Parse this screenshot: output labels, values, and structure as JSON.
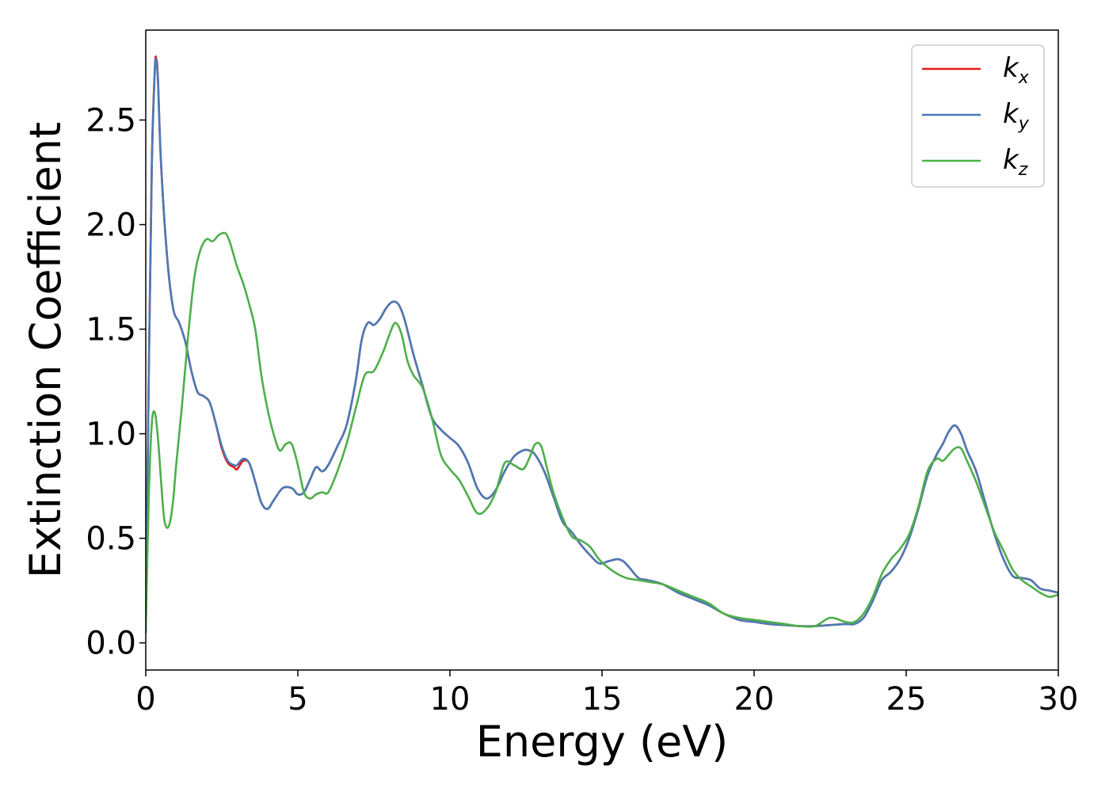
{
  "chart_data": {
    "type": "line",
    "title": "",
    "xlabel": "Energy (eV)",
    "ylabel": "Extinction Coefficient",
    "xlim": [
      0,
      30
    ],
    "ylim": [
      -0.13,
      2.93
    ],
    "xticks": [
      0,
      5,
      10,
      15,
      20,
      25,
      30
    ],
    "xtick_labels": [
      "0",
      "5",
      "10",
      "15",
      "20",
      "25",
      "30"
    ],
    "yticks": [
      0.0,
      0.5,
      1.0,
      1.5,
      2.0,
      2.5
    ],
    "ytick_labels": [
      "0.0",
      "0.5",
      "1.0",
      "1.5",
      "2.0",
      "2.5"
    ],
    "grid": false,
    "legend_position": "top-right",
    "series": [
      {
        "name": "kx",
        "legend_base": "k",
        "legend_sub": "x",
        "color": "#e41a1c",
        "x": [
          0,
          0.1,
          0.2,
          0.3,
          0.35,
          0.4,
          0.5,
          0.7,
          0.9,
          1.1,
          1.3,
          1.5,
          1.7,
          1.9,
          2.1,
          2.3,
          2.5,
          2.7,
          2.9,
          3.0,
          3.2,
          3.4,
          3.6,
          3.8,
          4.0,
          4.2,
          4.5,
          4.8,
          5.0,
          5.2,
          5.4,
          5.6,
          5.8,
          6.0,
          6.3,
          6.6,
          6.9,
          7.1,
          7.3,
          7.5,
          7.7,
          7.9,
          8.1,
          8.3,
          8.5,
          8.8,
          9.1,
          9.4,
          9.7,
          10.0,
          10.3,
          10.6,
          10.9,
          11.2,
          11.5,
          11.8,
          12.1,
          12.4,
          12.6,
          12.8,
          13.1,
          13.4,
          13.7,
          14.0,
          14.3,
          14.6,
          14.9,
          15.2,
          15.5,
          15.7,
          15.9,
          16.2,
          16.5,
          17.0,
          17.5,
          18.0,
          18.5,
          19.0,
          19.5,
          20.0,
          20.5,
          21.0,
          21.5,
          22.0,
          22.5,
          23.0,
          23.3,
          23.6,
          23.9,
          24.2,
          24.5,
          24.8,
          25.1,
          25.4,
          25.7,
          26.0,
          26.2,
          26.4,
          26.6,
          26.8,
          27.0,
          27.3,
          27.6,
          27.9,
          28.2,
          28.5,
          28.8,
          29.1,
          29.4,
          29.7,
          30.0
        ],
        "y": [
          0.05,
          1.3,
          2.3,
          2.75,
          2.79,
          2.7,
          2.3,
          1.85,
          1.6,
          1.53,
          1.44,
          1.3,
          1.2,
          1.18,
          1.15,
          1.05,
          0.93,
          0.86,
          0.84,
          0.83,
          0.87,
          0.86,
          0.77,
          0.67,
          0.64,
          0.68,
          0.74,
          0.74,
          0.71,
          0.72,
          0.78,
          0.84,
          0.82,
          0.85,
          0.94,
          1.04,
          1.25,
          1.45,
          1.53,
          1.52,
          1.55,
          1.6,
          1.63,
          1.62,
          1.55,
          1.38,
          1.23,
          1.08,
          1.02,
          0.98,
          0.94,
          0.86,
          0.74,
          0.69,
          0.73,
          0.82,
          0.89,
          0.92,
          0.92,
          0.9,
          0.82,
          0.7,
          0.58,
          0.53,
          0.47,
          0.42,
          0.38,
          0.39,
          0.4,
          0.39,
          0.36,
          0.31,
          0.3,
          0.28,
          0.24,
          0.21,
          0.18,
          0.14,
          0.11,
          0.1,
          0.09,
          0.085,
          0.08,
          0.08,
          0.085,
          0.09,
          0.09,
          0.12,
          0.2,
          0.3,
          0.34,
          0.4,
          0.5,
          0.64,
          0.8,
          0.9,
          0.95,
          1.01,
          1.04,
          1.0,
          0.92,
          0.82,
          0.67,
          0.52,
          0.4,
          0.32,
          0.31,
          0.3,
          0.26,
          0.25,
          0.24
        ]
      },
      {
        "name": "ky",
        "legend_base": "k",
        "legend_sub": "y",
        "color": "#4a7ab5",
        "x": [
          0,
          0.1,
          0.2,
          0.3,
          0.35,
          0.4,
          0.5,
          0.7,
          0.9,
          1.1,
          1.3,
          1.5,
          1.7,
          1.9,
          2.1,
          2.3,
          2.5,
          2.7,
          2.9,
          3.0,
          3.2,
          3.4,
          3.6,
          3.8,
          4.0,
          4.2,
          4.5,
          4.8,
          5.0,
          5.2,
          5.4,
          5.6,
          5.8,
          6.0,
          6.3,
          6.6,
          6.9,
          7.1,
          7.3,
          7.5,
          7.7,
          7.9,
          8.1,
          8.3,
          8.5,
          8.8,
          9.1,
          9.4,
          9.7,
          10.0,
          10.3,
          10.6,
          10.9,
          11.2,
          11.5,
          11.8,
          12.1,
          12.4,
          12.6,
          12.8,
          13.1,
          13.4,
          13.7,
          14.0,
          14.3,
          14.6,
          14.9,
          15.2,
          15.5,
          15.7,
          15.9,
          16.2,
          16.5,
          17.0,
          17.5,
          18.0,
          18.5,
          19.0,
          19.5,
          20.0,
          20.5,
          21.0,
          21.5,
          22.0,
          22.5,
          23.0,
          23.3,
          23.6,
          23.9,
          24.2,
          24.5,
          24.8,
          25.1,
          25.4,
          25.7,
          26.0,
          26.2,
          26.4,
          26.6,
          26.8,
          27.0,
          27.3,
          27.6,
          27.9,
          28.2,
          28.5,
          28.8,
          29.1,
          29.4,
          29.7,
          30.0
        ],
        "y": [
          0.05,
          1.28,
          2.28,
          2.74,
          2.78,
          2.69,
          2.3,
          1.85,
          1.6,
          1.53,
          1.44,
          1.3,
          1.2,
          1.18,
          1.15,
          1.05,
          0.94,
          0.87,
          0.85,
          0.85,
          0.88,
          0.86,
          0.77,
          0.67,
          0.64,
          0.68,
          0.74,
          0.74,
          0.71,
          0.72,
          0.78,
          0.84,
          0.82,
          0.85,
          0.94,
          1.04,
          1.25,
          1.45,
          1.53,
          1.52,
          1.55,
          1.6,
          1.63,
          1.62,
          1.55,
          1.38,
          1.23,
          1.08,
          1.02,
          0.98,
          0.94,
          0.86,
          0.74,
          0.69,
          0.73,
          0.82,
          0.89,
          0.92,
          0.92,
          0.9,
          0.82,
          0.7,
          0.58,
          0.53,
          0.47,
          0.42,
          0.38,
          0.39,
          0.4,
          0.39,
          0.36,
          0.31,
          0.3,
          0.28,
          0.24,
          0.21,
          0.18,
          0.14,
          0.11,
          0.1,
          0.09,
          0.085,
          0.08,
          0.08,
          0.085,
          0.09,
          0.09,
          0.12,
          0.2,
          0.3,
          0.34,
          0.4,
          0.5,
          0.64,
          0.8,
          0.9,
          0.95,
          1.01,
          1.04,
          1.0,
          0.92,
          0.82,
          0.67,
          0.52,
          0.4,
          0.32,
          0.31,
          0.3,
          0.26,
          0.25,
          0.24
        ]
      },
      {
        "name": "kz",
        "legend_base": "k",
        "legend_sub": "z",
        "color": "#4daf4a",
        "x": [
          0,
          0.1,
          0.2,
          0.3,
          0.4,
          0.5,
          0.6,
          0.7,
          0.8,
          0.9,
          1.0,
          1.2,
          1.4,
          1.6,
          1.8,
          2.0,
          2.2,
          2.4,
          2.6,
          2.7,
          2.8,
          3.0,
          3.2,
          3.4,
          3.6,
          3.8,
          4.0,
          4.2,
          4.4,
          4.6,
          4.8,
          5.0,
          5.2,
          5.4,
          5.6,
          5.8,
          6.0,
          6.3,
          6.6,
          6.9,
          7.2,
          7.5,
          7.8,
          8.0,
          8.2,
          8.4,
          8.6,
          8.8,
          9.1,
          9.4,
          9.7,
          10.0,
          10.3,
          10.6,
          10.9,
          11.2,
          11.5,
          11.8,
          12.1,
          12.4,
          12.6,
          12.8,
          13.0,
          13.2,
          13.4,
          13.7,
          14.0,
          14.3,
          14.6,
          14.9,
          15.2,
          15.5,
          15.8,
          16.2,
          16.6,
          17.0,
          17.5,
          18.0,
          18.5,
          19.0,
          19.5,
          20.0,
          20.5,
          21.0,
          21.5,
          22.0,
          22.5,
          23.0,
          23.3,
          23.6,
          23.9,
          24.2,
          24.5,
          24.8,
          25.1,
          25.4,
          25.7,
          26.0,
          26.2,
          26.4,
          26.6,
          26.8,
          27.0,
          27.3,
          27.6,
          27.9,
          28.2,
          28.5,
          28.8,
          29.1,
          29.4,
          29.7,
          30.0
        ],
        "y": [
          0.05,
          0.7,
          1.05,
          1.1,
          0.98,
          0.78,
          0.6,
          0.55,
          0.58,
          0.68,
          0.85,
          1.15,
          1.48,
          1.75,
          1.88,
          1.93,
          1.92,
          1.95,
          1.96,
          1.94,
          1.9,
          1.8,
          1.72,
          1.62,
          1.5,
          1.28,
          1.12,
          1.0,
          0.92,
          0.95,
          0.95,
          0.85,
          0.72,
          0.69,
          0.71,
          0.72,
          0.72,
          0.82,
          0.95,
          1.12,
          1.28,
          1.3,
          1.39,
          1.47,
          1.53,
          1.48,
          1.35,
          1.28,
          1.22,
          1.08,
          0.9,
          0.83,
          0.78,
          0.7,
          0.62,
          0.64,
          0.72,
          0.86,
          0.85,
          0.83,
          0.88,
          0.95,
          0.94,
          0.83,
          0.72,
          0.6,
          0.51,
          0.49,
          0.46,
          0.4,
          0.36,
          0.33,
          0.31,
          0.3,
          0.29,
          0.28,
          0.25,
          0.22,
          0.19,
          0.14,
          0.12,
          0.11,
          0.1,
          0.09,
          0.08,
          0.08,
          0.12,
          0.1,
          0.1,
          0.14,
          0.22,
          0.33,
          0.4,
          0.45,
          0.52,
          0.65,
          0.82,
          0.88,
          0.87,
          0.9,
          0.93,
          0.93,
          0.87,
          0.77,
          0.65,
          0.53,
          0.44,
          0.35,
          0.3,
          0.27,
          0.24,
          0.22,
          0.23
        ]
      }
    ]
  }
}
